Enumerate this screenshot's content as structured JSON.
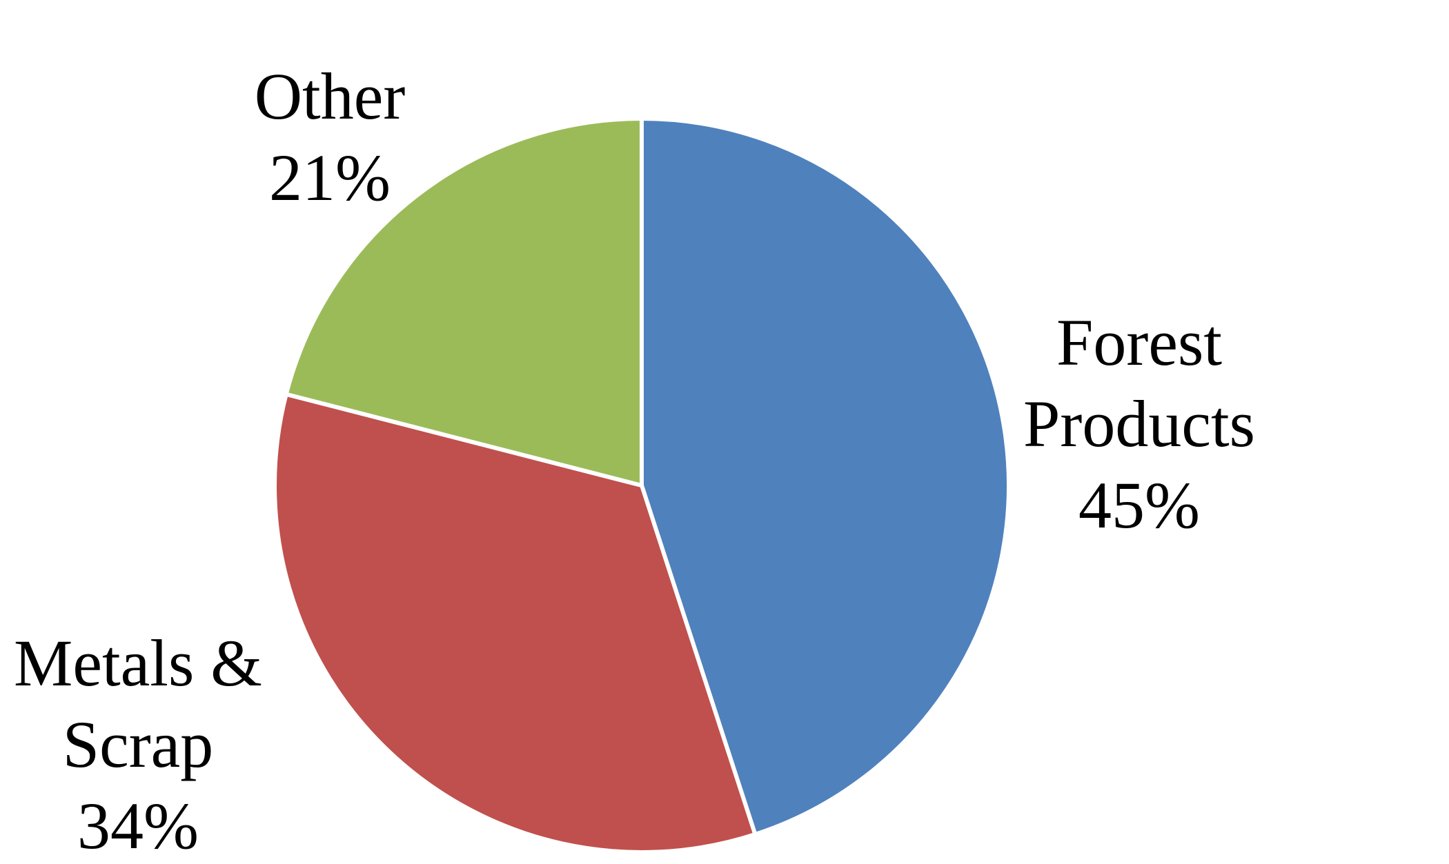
{
  "chart_data": {
    "type": "pie",
    "categories": [
      "Forest Products",
      "Metals & Scrap",
      "Other"
    ],
    "values": [
      45,
      34,
      21
    ],
    "value_labels": [
      "45%",
      "34%",
      "21%"
    ],
    "colors": [
      "#4f81bd",
      "#c0504d",
      "#9bbb59"
    ]
  }
}
